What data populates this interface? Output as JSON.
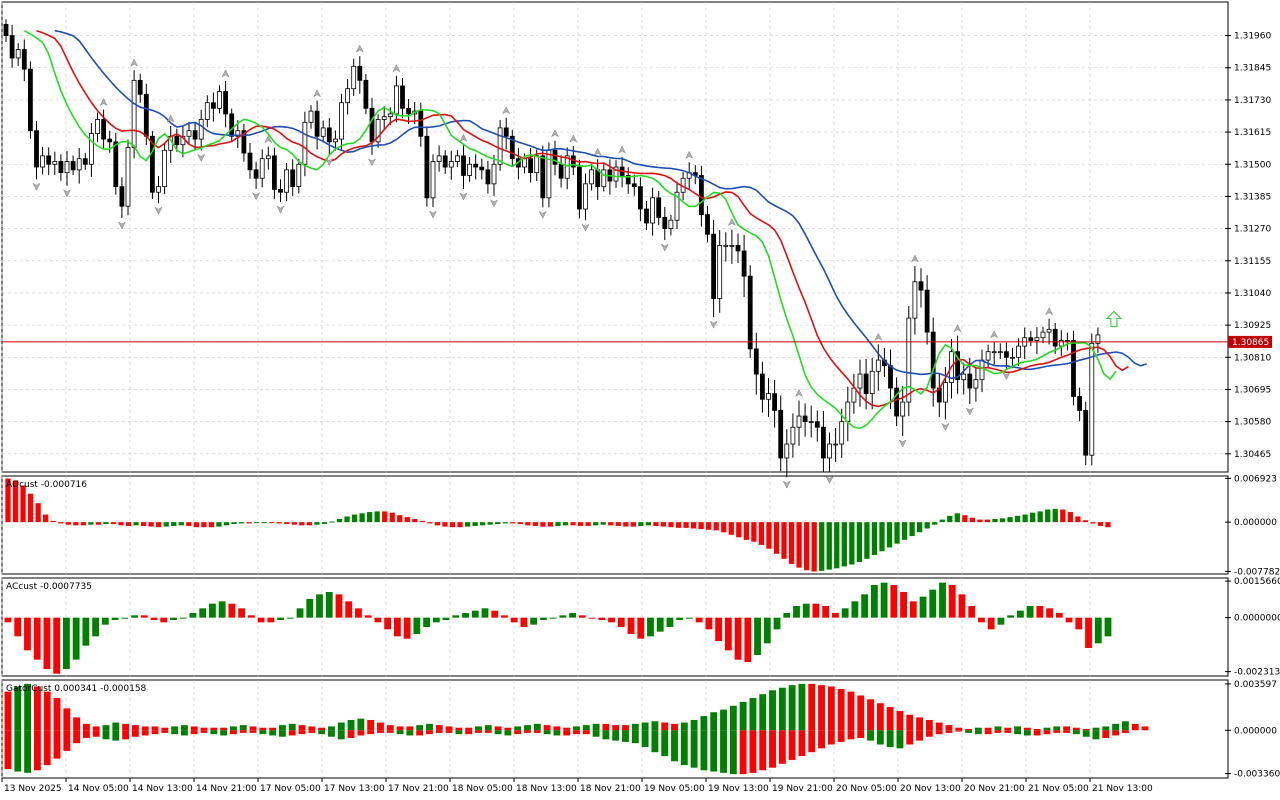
{
  "chart_data": {
    "type": "candlestick",
    "symbol_timeframe": "H1",
    "colors": {
      "up_bar": "#008000",
      "down_bar": "#ff0000",
      "alligator_jaw": "#1f4fb4",
      "alligator_teeth": "#e01010",
      "alligator_lips": "#22dd22",
      "current_price_line": "#c00000",
      "buy_arrow": "#4ccc4c"
    },
    "main": {
      "yticks": [
        "1.31960",
        "1.31845",
        "1.31730",
        "1.31615",
        "1.31500",
        "1.31385",
        "1.31270",
        "1.31155",
        "1.31040",
        "1.30925",
        "1.30810",
        "1.30695",
        "1.30580",
        "1.30465"
      ],
      "current_price": "1.30865"
    },
    "panels": [
      {
        "label": "AOcust -0.000716",
        "yticks": [
          "0.006923",
          "0.000000",
          "-0.007782"
        ]
      },
      {
        "label": "ACcust -0.0007735",
        "yticks": [
          "0.0015660",
          "0.0000000",
          "-0.0023132"
        ]
      },
      {
        "label": "GatorCust 0.000341 -0.000158",
        "yticks": [
          "0.003597",
          "0.000000",
          "-0.003360"
        ]
      }
    ],
    "xticks": [
      "13 Nov 2025",
      "14 Nov 05:00",
      "14 Nov 13:00",
      "14 Nov 21:00",
      "17 Nov 05:00",
      "17 Nov 13:00",
      "17 Nov 21:00",
      "18 Nov 05:00",
      "18 Nov 13:00",
      "18 Nov 21:00",
      "19 Nov 05:00",
      "19 Nov 13:00",
      "19 Nov 21:00",
      "20 Nov 05:00",
      "20 Nov 13:00",
      "20 Nov 21:00",
      "21 Nov 05:00",
      "21 Nov 13:00"
    ],
    "series": {
      "close": [
        1.3196,
        1.3188,
        1.3191,
        1.3184,
        1.3162,
        1.3149,
        1.3153,
        1.315,
        1.3151,
        1.3147,
        1.3151,
        1.3148,
        1.3152,
        1.315,
        1.3161,
        1.3166,
        1.3159,
        1.3158,
        1.3142,
        1.3135,
        1.3156,
        1.318,
        1.3175,
        1.316,
        1.314,
        1.3142,
        1.3155,
        1.316,
        1.3157,
        1.316,
        1.3162,
        1.3159,
        1.3166,
        1.3172,
        1.317,
        1.3176,
        1.3168,
        1.316,
        1.3162,
        1.3154,
        1.3148,
        1.3145,
        1.3152,
        1.3153,
        1.3141,
        1.314,
        1.3148,
        1.3142,
        1.315,
        1.3165,
        1.3169,
        1.316,
        1.3163,
        1.3158,
        1.3159,
        1.3172,
        1.3177,
        1.3185,
        1.318,
        1.317,
        1.3158,
        1.3166,
        1.3167,
        1.3168,
        1.3178,
        1.317,
        1.3168,
        1.3169,
        1.316,
        1.3138,
        1.3151,
        1.3153,
        1.3149,
        1.3151,
        1.3153,
        1.3146,
        1.315,
        1.3149,
        1.3148,
        1.3143,
        1.315,
        1.3163,
        1.316,
        1.3152,
        1.3149,
        1.3152,
        1.3147,
        1.3153,
        1.3138,
        1.3155,
        1.315,
        1.3145,
        1.3153,
        1.3149,
        1.3134,
        1.3143,
        1.3148,
        1.3142,
        1.3148,
        1.3144,
        1.3149,
        1.3146,
        1.3143,
        1.3142,
        1.3134,
        1.3129,
        1.3138,
        1.3131,
        1.3127,
        1.313,
        1.314,
        1.3145,
        1.3147,
        1.3146,
        1.3132,
        1.3125,
        1.3102,
        1.3121,
        1.3121,
        1.3121,
        1.3119,
        1.311,
        1.3084,
        1.3075,
        1.3066,
        1.3068,
        1.3062,
        1.3045,
        1.305,
        1.3056,
        1.306,
        1.3058,
        1.3058,
        1.3056,
        1.3045,
        1.305,
        1.305,
        1.3058,
        1.3065,
        1.307,
        1.3075,
        1.3068,
        1.3076,
        1.308,
        1.3078,
        1.307,
        1.306,
        1.3065,
        1.3095,
        1.3108,
        1.3105,
        1.309,
        1.307,
        1.3065,
        1.3072,
        1.3083,
        1.3073,
        1.3075,
        1.307,
        1.3073,
        1.308,
        1.3083,
        1.3083,
        1.3083,
        1.3081,
        1.3081,
        1.3085,
        1.3088,
        1.3087,
        1.3088,
        1.309,
        1.3091,
        1.3085,
        1.3087,
        1.3087,
        1.3067,
        1.3062,
        1.3046,
        1.3086,
        1.3089
      ],
      "open": [
        1.32,
        1.3196,
        1.3188,
        1.3191,
        1.3184,
        1.3162,
        1.3149,
        1.3153,
        1.315,
        1.3151,
        1.3147,
        1.3151,
        1.3148,
        1.3152,
        1.315,
        1.3161,
        1.3166,
        1.3159,
        1.3158,
        1.3142,
        1.3135,
        1.3156,
        1.318,
        1.3175,
        1.316,
        1.314,
        1.3142,
        1.3155,
        1.316,
        1.3157,
        1.316,
        1.3162,
        1.3159,
        1.3166,
        1.3172,
        1.317,
        1.3176,
        1.3168,
        1.316,
        1.3162,
        1.3154,
        1.3148,
        1.3145,
        1.3152,
        1.3153,
        1.3141,
        1.314,
        1.3148,
        1.3142,
        1.315,
        1.3165,
        1.3169,
        1.316,
        1.3163,
        1.3158,
        1.3159,
        1.3172,
        1.3177,
        1.3185,
        1.318,
        1.317,
        1.3158,
        1.3166,
        1.3167,
        1.3168,
        1.3178,
        1.317,
        1.3168,
        1.3169,
        1.316,
        1.3138,
        1.3151,
        1.3153,
        1.3149,
        1.3151,
        1.3153,
        1.3146,
        1.315,
        1.3149,
        1.3148,
        1.3143,
        1.315,
        1.3163,
        1.316,
        1.3152,
        1.3149,
        1.3152,
        1.3147,
        1.3153,
        1.3138,
        1.3155,
        1.315,
        1.3145,
        1.3153,
        1.3149,
        1.3134,
        1.3143,
        1.3148,
        1.3142,
        1.3148,
        1.3144,
        1.3149,
        1.3146,
        1.3143,
        1.3142,
        1.3134,
        1.3129,
        1.3138,
        1.3131,
        1.3127,
        1.313,
        1.314,
        1.3145,
        1.3147,
        1.3146,
        1.3132,
        1.3125,
        1.3102,
        1.3121,
        1.3121,
        1.3121,
        1.3119,
        1.311,
        1.3084,
        1.3075,
        1.3066,
        1.3068,
        1.3062,
        1.3045,
        1.305,
        1.3056,
        1.306,
        1.3058,
        1.3058,
        1.3056,
        1.3045,
        1.305,
        1.305,
        1.3058,
        1.3065,
        1.307,
        1.3075,
        1.3068,
        1.3076,
        1.308,
        1.3078,
        1.307,
        1.306,
        1.3065,
        1.3095,
        1.3108,
        1.3105,
        1.309,
        1.307,
        1.3065,
        1.3072,
        1.3083,
        1.3073,
        1.3075,
        1.307,
        1.3073,
        1.308,
        1.3083,
        1.3083,
        1.3083,
        1.3081,
        1.3081,
        1.3085,
        1.3088,
        1.3087,
        1.3088,
        1.309,
        1.3091,
        1.3085,
        1.3087,
        1.3087,
        1.3067,
        1.3062,
        1.3046,
        1.3086
      ],
      "ao": [
        0.0069,
        0.0066,
        0.0058,
        0.0045,
        0.003,
        0.0012,
        0.0002,
        -0.0002,
        -0.0004,
        -0.0005,
        -0.0005,
        -0.0004,
        -0.0004,
        -0.0003,
        -0.0003,
        -0.0005,
        -0.0006,
        -0.0005,
        -0.0006,
        -0.0007,
        -0.0008,
        -0.0007,
        -0.0006,
        -0.0005,
        -0.0006,
        -0.0008,
        -0.0008,
        -0.0008,
        -0.0007,
        -0.0005,
        -0.0003,
        -0.0002,
        -0.0002,
        -0.0001,
        0.0,
        -0.0001,
        -0.0002,
        -0.0003,
        -0.0004,
        -0.0005,
        -0.0005,
        -0.0004,
        -0.0003,
        0.0001,
        0.0005,
        0.0009,
        0.0012,
        0.0014,
        0.0016,
        0.0017,
        0.0017,
        0.0015,
        0.0011,
        0.0008,
        0.0005,
        0.0002,
        -0.0002,
        -0.0005,
        -0.0007,
        -0.0008,
        -0.0008,
        -0.0007,
        -0.0006,
        -0.0005,
        -0.0004,
        -0.0003,
        -0.0002,
        -0.0002,
        -0.0003,
        -0.0005,
        -0.0006,
        -0.0007,
        -0.0007,
        -0.0006,
        -0.0005,
        -0.0005,
        -0.0006,
        -0.0006,
        -0.0005,
        -0.0004,
        -0.0005,
        -0.0006,
        -0.0007,
        -0.0007,
        -0.0006,
        -0.0005,
        -0.0006,
        -0.0007,
        -0.0008,
        -0.0009,
        -0.0009,
        -0.001,
        -0.0011,
        -0.0012,
        -0.0013,
        -0.0016,
        -0.002,
        -0.0024,
        -0.0028,
        -0.0031,
        -0.0036,
        -0.0042,
        -0.005,
        -0.0058,
        -0.0066,
        -0.0072,
        -0.0076,
        -0.0078,
        -0.0077,
        -0.0075,
        -0.0073,
        -0.007,
        -0.0067,
        -0.0063,
        -0.0058,
        -0.0052,
        -0.0046,
        -0.004,
        -0.0034,
        -0.0028,
        -0.0022,
        -0.0016,
        -0.001,
        -0.0004,
        0.0004,
        0.001,
        0.0014,
        0.0011,
        0.0007,
        0.0004,
        0.0004,
        0.0005,
        0.0006,
        0.0008,
        0.001,
        0.0012,
        0.0015,
        0.0017,
        0.002,
        0.0021,
        0.002,
        0.0016,
        0.0009,
        0.0003,
        -0.0002,
        -0.0006,
        -0.0008
      ],
      "ac": [
        -0.0002,
        -0.0008,
        -0.0014,
        -0.0018,
        -0.0022,
        -0.0024,
        -0.0022,
        -0.0018,
        -0.0012,
        -0.0008,
        -0.0003,
        -0.0001,
        0.0,
        0.0001,
        0.0001,
        -0.0001,
        -0.0002,
        -0.0001,
        0.0,
        0.0002,
        0.0004,
        0.0006,
        0.0007,
        0.0006,
        0.0004,
        0.0001,
        -0.0002,
        -0.0002,
        -0.0001,
        0.0,
        0.0004,
        0.0008,
        0.001,
        0.0011,
        0.001,
        0.0007,
        0.0004,
        0.0001,
        -0.0002,
        -0.0005,
        -0.0008,
        -0.0009,
        -0.0007,
        -0.0004,
        -0.0002,
        -0.0001,
        0.0001,
        0.0002,
        0.0003,
        0.0004,
        0.0003,
        0.0001,
        -0.0002,
        -0.0004,
        -0.0003,
        -0.0001,
        0.0,
        0.0001,
        0.0002,
        0.0001,
        0.0,
        -0.0001,
        -0.0002,
        -0.0004,
        -0.0007,
        -0.0009,
        -0.0008,
        -0.0006,
        -0.0004,
        -0.0001,
        0.0,
        -0.0002,
        -0.0005,
        -0.001,
        -0.0014,
        -0.0018,
        -0.0019,
        -0.0016,
        -0.0011,
        -0.0005,
        0.0002,
        0.0005,
        0.0006,
        0.0006,
        0.0005,
        0.0002,
        0.0004,
        0.0007,
        0.001,
        0.0014,
        0.0015,
        0.0014,
        0.0011,
        0.0007,
        0.0009,
        0.0012,
        0.0015,
        0.0014,
        0.001,
        0.0005,
        -0.0002,
        -0.0005,
        -0.0003,
        0.0001,
        0.0003,
        0.0005,
        0.0005,
        0.0004,
        0.0002,
        -0.0002,
        -0.0005,
        -0.0013,
        -0.0011,
        -0.0008
      ],
      "gator_up": [
        0.003,
        0.0034,
        0.0036,
        0.0034,
        0.003,
        0.0025,
        0.0017,
        0.001,
        0.0005,
        0.0003,
        0.0004,
        0.0006,
        0.0005,
        0.0004,
        0.0003,
        0.0003,
        0.0002,
        0.0003,
        0.0004,
        0.0003,
        0.0002,
        0.0002,
        0.0002,
        0.0003,
        0.0004,
        0.0003,
        0.0002,
        0.0002,
        0.0004,
        0.0005,
        0.0004,
        0.0003,
        0.0002,
        0.0003,
        0.0006,
        0.0008,
        0.0009,
        0.0008,
        0.0006,
        0.0004,
        0.0003,
        0.0003,
        0.0004,
        0.0005,
        0.0004,
        0.0003,
        0.0002,
        0.0002,
        0.0003,
        0.0004,
        0.0003,
        0.0002,
        0.0003,
        0.0004,
        0.0005,
        0.0004,
        0.0003,
        0.0002,
        0.0003,
        0.0004,
        0.0005,
        0.0005,
        0.0004,
        0.0004,
        0.0005,
        0.0006,
        0.0007,
        0.0006,
        0.0005,
        0.0006,
        0.0008,
        0.0011,
        0.0014,
        0.0016,
        0.0019,
        0.0022,
        0.0025,
        0.0028,
        0.0031,
        0.0033,
        0.0035,
        0.0036,
        0.0036,
        0.0035,
        0.0034,
        0.0032,
        0.003,
        0.0027,
        0.0024,
        0.0021,
        0.0018,
        0.0015,
        0.0012,
        0.001,
        0.0008,
        0.0006,
        0.0004,
        0.0002,
        0.0001,
        0.0002,
        0.0002,
        0.0003,
        0.0002,
        0.0003,
        0.0002,
        0.0001,
        0.0002,
        0.0003,
        0.0003,
        0.0002,
        0.0001,
        0.0002,
        0.0003,
        0.0005,
        0.0007,
        0.0005,
        0.0003
      ],
      "gator_down": [
        -0.003,
        -0.0032,
        -0.0033,
        -0.0031,
        -0.0027,
        -0.0022,
        -0.0016,
        -0.001,
        -0.0006,
        -0.0005,
        -0.0007,
        -0.0008,
        -0.0007,
        -0.0005,
        -0.0004,
        -0.0003,
        -0.0002,
        -0.0003,
        -0.0004,
        -0.0003,
        -0.0002,
        -0.0003,
        -0.0004,
        -0.0003,
        -0.0002,
        -0.0002,
        -0.0003,
        -0.0004,
        -0.0005,
        -0.0004,
        -0.0003,
        -0.0002,
        -0.0003,
        -0.0005,
        -0.0007,
        -0.0006,
        -0.0004,
        -0.0003,
        -0.0002,
        -0.0002,
        -0.0003,
        -0.0004,
        -0.0004,
        -0.0003,
        -0.0002,
        -0.0002,
        -0.0003,
        -0.0003,
        -0.0002,
        -0.0002,
        -0.0003,
        -0.0004,
        -0.0003,
        -0.0002,
        -0.0002,
        -0.0003,
        -0.0004,
        -0.0004,
        -0.0003,
        -0.0003,
        -0.0005,
        -0.0007,
        -0.0008,
        -0.0009,
        -0.001,
        -0.0013,
        -0.0017,
        -0.002,
        -0.0024,
        -0.0027,
        -0.0029,
        -0.0031,
        -0.0032,
        -0.0033,
        -0.0034,
        -0.0034,
        -0.0033,
        -0.0031,
        -0.0029,
        -0.0026,
        -0.0023,
        -0.002,
        -0.0017,
        -0.0014,
        -0.0011,
        -0.0009,
        -0.0007,
        -0.0006,
        -0.0008,
        -0.0011,
        -0.0013,
        -0.0014,
        -0.0011,
        -0.0008,
        -0.0005,
        -0.0003,
        -0.0002,
        -0.0001,
        -0.0002,
        -0.0003,
        -0.0003,
        -0.0002,
        -0.0002,
        -0.0003,
        -0.0004,
        -0.0004,
        -0.0003,
        -0.0002,
        -0.0002,
        -0.0003,
        -0.0005,
        -0.0007,
        -0.0006,
        -0.0004,
        -0.0002
      ]
    }
  }
}
